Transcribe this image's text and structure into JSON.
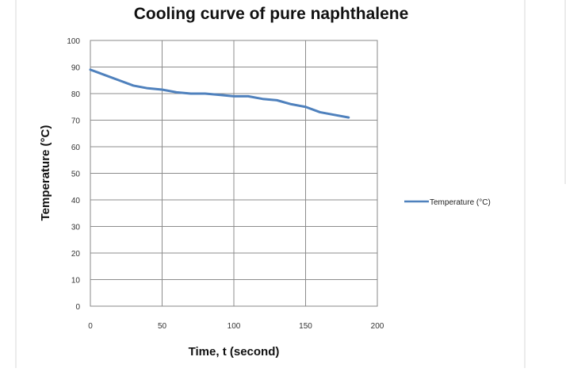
{
  "chart_data": {
    "type": "line",
    "title": "Cooling curve of pure naphthalene",
    "xlabel": "Time, t (second)",
    "ylabel": "Temperature (°C)",
    "xlim": [
      0,
      200
    ],
    "ylim": [
      0,
      100
    ],
    "xticks": [
      "0",
      "50",
      "100",
      "150",
      "200"
    ],
    "yticks": [
      "0",
      "10",
      "20",
      "30",
      "40",
      "50",
      "60",
      "70",
      "80",
      "90",
      "100"
    ],
    "grid": true,
    "legend_position": "right",
    "series": [
      {
        "name": "Temperature (°C)",
        "color": "#4f81bd",
        "x": [
          0,
          10,
          20,
          30,
          40,
          50,
          60,
          70,
          80,
          90,
          100,
          110,
          120,
          130,
          140,
          150,
          160,
          170,
          180
        ],
        "y": [
          89,
          87,
          85,
          83,
          82,
          81.5,
          80.5,
          80,
          80,
          79.5,
          79,
          79,
          78,
          77.5,
          76,
          75,
          73,
          72,
          71
        ]
      }
    ]
  }
}
